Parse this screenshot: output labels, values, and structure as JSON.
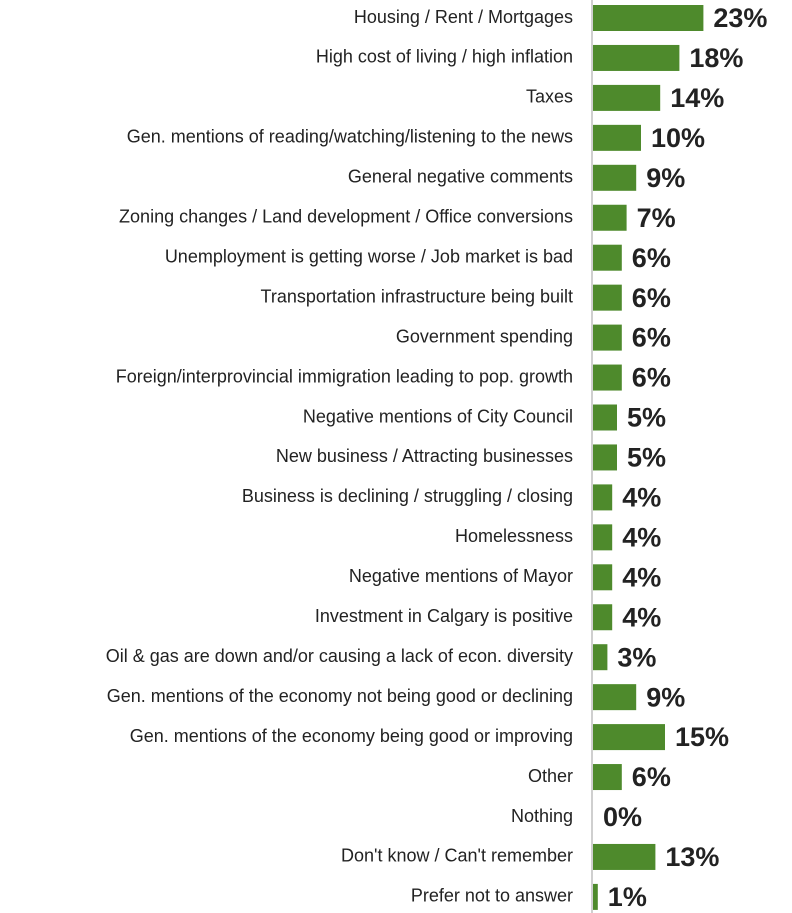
{
  "chart_data": {
    "type": "barh",
    "categories": [
      "Housing  / Rent / Mortgages",
      "High cost of living / high inflation",
      "Taxes",
      "Gen. mentions of reading/watching/listening to the news",
      "General negative comments",
      "Zoning changes / Land development / Office conversions",
      "Unemployment is getting worse / Job market is bad",
      "Transportation infrastructure being built",
      "Government spending",
      "Foreign/interprovincial immigration  leading to pop. growth",
      "Negative mentions of City Council",
      "New business / Attracting businesses",
      "Business is declining / struggling / closing",
      "Homelessness",
      "Negative mentions of Mayor",
      "Investment in Calgary is positive",
      "Oil & gas are down and/or causing a lack of econ. diversity",
      "Gen. mentions of the economy not being good or declining",
      "Gen. mentions of the economy being good or improving",
      "Other",
      "Nothing",
      "Don't know / Can't remember",
      "Prefer not to answer"
    ],
    "values": [
      23,
      18,
      14,
      10,
      9,
      7,
      6,
      6,
      6,
      6,
      5,
      5,
      4,
      4,
      4,
      4,
      3,
      9,
      15,
      6,
      0,
      13,
      1
    ],
    "value_labels": [
      "23%",
      "18%",
      "14%",
      "10%",
      "9%",
      "7%",
      "6%",
      "6%",
      "6%",
      "6%",
      "5%",
      "5%",
      "4%",
      "4%",
      "4%",
      "4%",
      "3%",
      "9%",
      "15%",
      "6%",
      "0%",
      "13%",
      "1%"
    ],
    "color": "#4e8a2c"
  }
}
